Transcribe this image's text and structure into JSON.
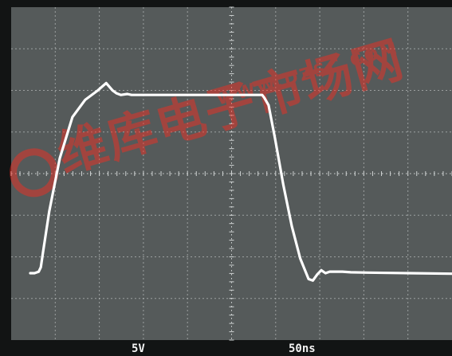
{
  "chart_data": {
    "type": "line",
    "title": "",
    "xlabel": "",
    "ylabel": "",
    "grid": true,
    "x_divisions": 10,
    "y_divisions": 8,
    "volts_per_div": "5V",
    "time_per_div": "50ns",
    "xlim": [
      0,
      10
    ],
    "ylim": [
      0,
      8
    ],
    "series": [
      {
        "values_unit": "divisions",
        "x": [
          0.0,
          0.1,
          0.2,
          0.25,
          0.3,
          0.45,
          0.7,
          1.0,
          1.3,
          1.6,
          1.8,
          1.95,
          2.05,
          2.15,
          2.3,
          2.4,
          2.55,
          2.7,
          3.0,
          4.0,
          5.0,
          5.5,
          5.55,
          5.65,
          5.8,
          6.0,
          6.2,
          6.4,
          6.6,
          6.7,
          6.8,
          6.9,
          7.0,
          7.1,
          7.25,
          7.4,
          7.6,
          8.0,
          9.0,
          10.0
        ],
        "y": [
          0.0,
          0.0,
          0.05,
          0.2,
          0.7,
          2.1,
          3.9,
          5.3,
          5.88,
          6.2,
          6.45,
          6.2,
          6.1,
          6.05,
          6.08,
          6.05,
          6.05,
          6.05,
          6.05,
          6.05,
          6.05,
          6.05,
          5.95,
          5.7,
          4.6,
          3.0,
          1.6,
          0.5,
          -0.2,
          -0.25,
          -0.05,
          0.1,
          0.0,
          0.05,
          0.05,
          0.05,
          0.03,
          0.02,
          0.0,
          -0.02
        ]
      }
    ]
  },
  "watermark": {
    "characters": "维库电子市场网",
    "url": "WWW.DZSC.COM",
    "color": "#ff2a1e"
  },
  "colors": {
    "screen": "#555a5a",
    "frame": "#121414",
    "grid": "#b9bdbd",
    "trace": "#ffffff",
    "readout": "#f2f2f2"
  }
}
